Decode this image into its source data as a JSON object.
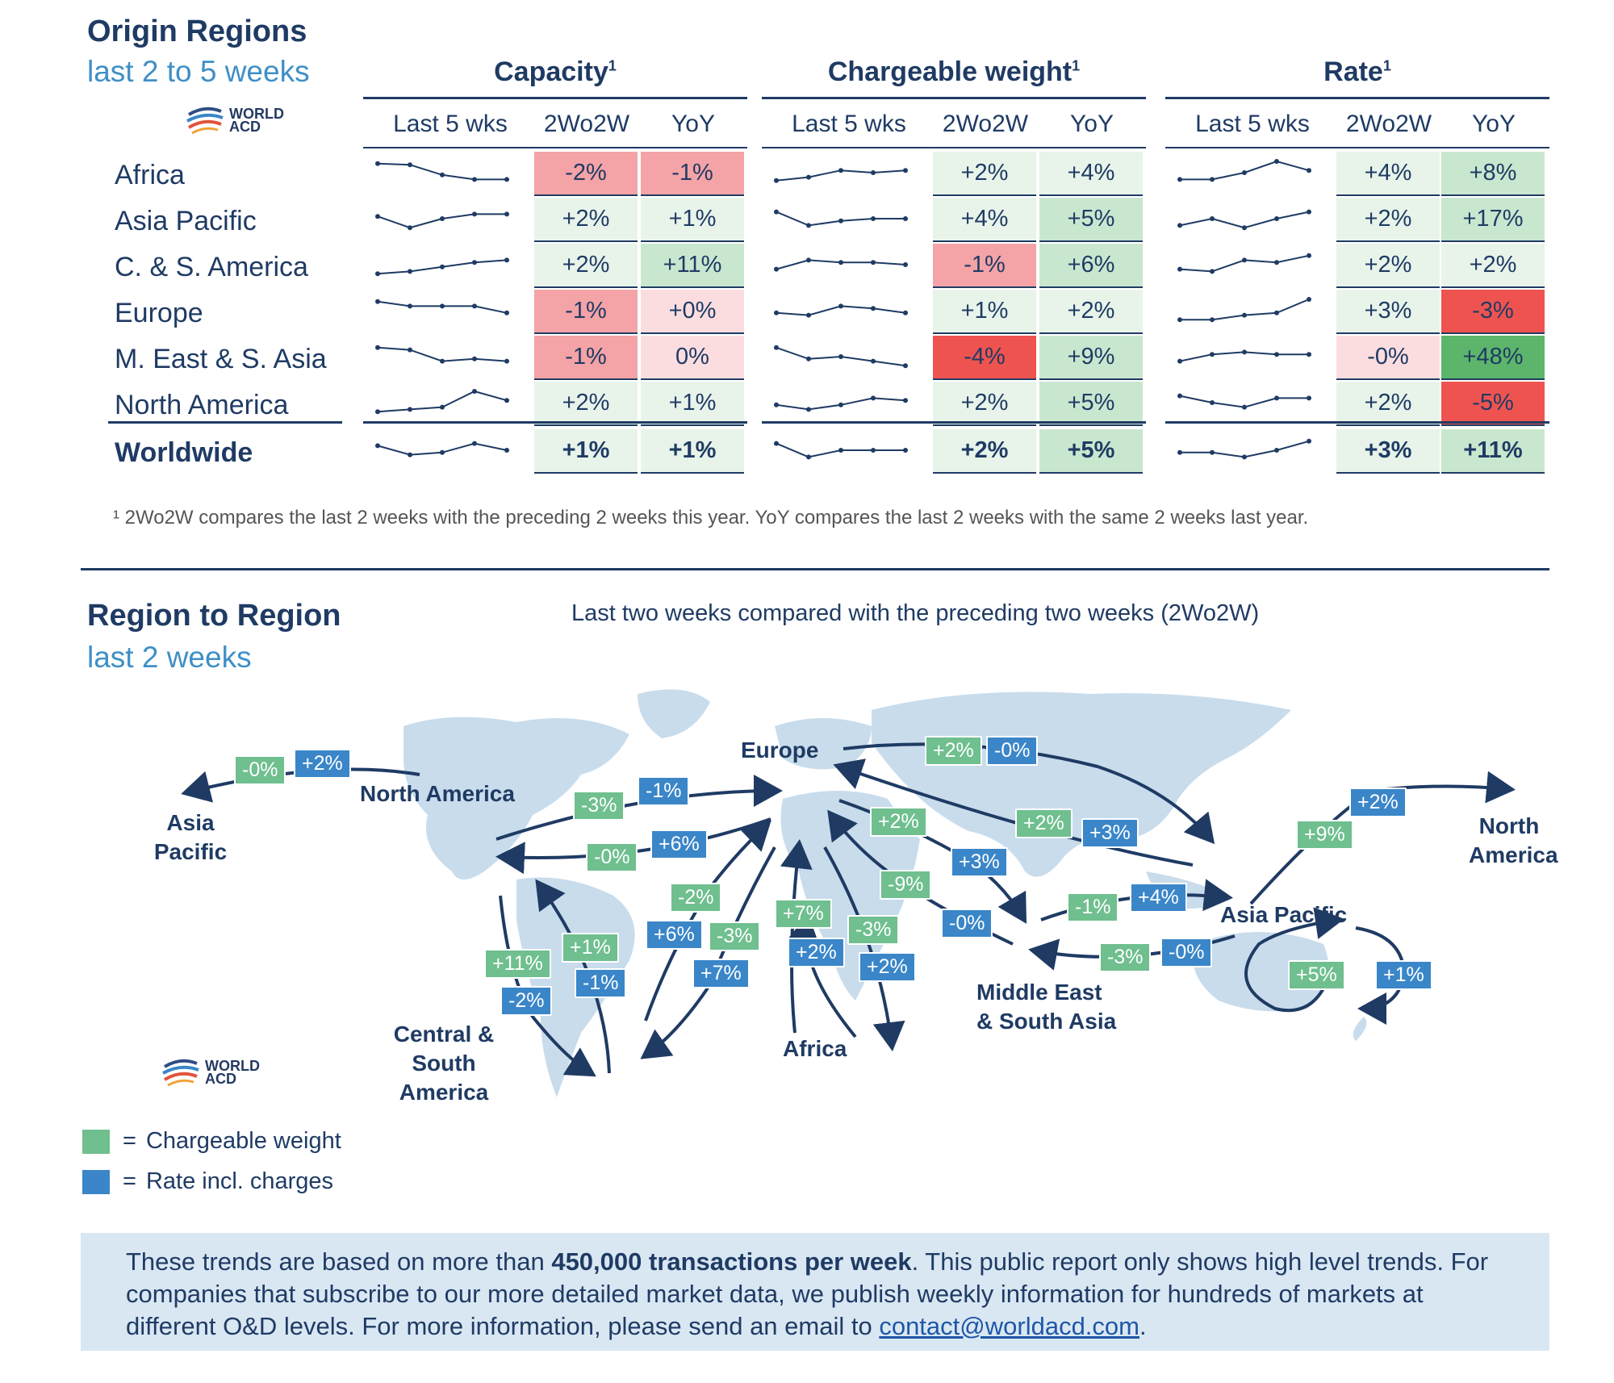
{
  "origin": {
    "title": "Origin Regions",
    "subtitle": "last 2 to 5 weeks",
    "logo": {
      "line1": "WORLD",
      "line2": "ACD"
    },
    "groups": [
      {
        "label": "Capacity",
        "sup": "1"
      },
      {
        "label": "Chargeable weight",
        "sup": "1"
      },
      {
        "label": "Rate",
        "sup": "1"
      }
    ],
    "col_headers": [
      "Last 5 wks",
      "2Wo2W",
      "YoY"
    ],
    "rows": [
      {
        "region": "Africa",
        "bold": false,
        "cap": {
          "spark": [
            0.9,
            0.85,
            0.4,
            0.2,
            0.2
          ],
          "w": "-2%",
          "y": "-1%"
        },
        "cw": {
          "spark": [
            0.15,
            0.3,
            0.6,
            0.5,
            0.6
          ],
          "w": "+2%",
          "y": "+4%"
        },
        "rate": {
          "spark": [
            0.2,
            0.2,
            0.5,
            1.0,
            0.6
          ],
          "w": "+4%",
          "y": "+8%"
        }
      },
      {
        "region": "Asia Pacific",
        "bold": false,
        "cap": {
          "spark": [
            0.6,
            0.1,
            0.5,
            0.7,
            0.7
          ],
          "w": "+2%",
          "y": "+1%"
        },
        "cw": {
          "spark": [
            0.8,
            0.2,
            0.4,
            0.5,
            0.5
          ],
          "w": "+4%",
          "y": "+5%"
        },
        "rate": {
          "spark": [
            0.2,
            0.5,
            0.1,
            0.5,
            0.8
          ],
          "w": "+2%",
          "y": "+17%"
        }
      },
      {
        "region": "C. & S. America",
        "bold": false,
        "cap": {
          "spark": [
            0.1,
            0.2,
            0.4,
            0.6,
            0.7
          ],
          "w": "+2%",
          "y": "+11%"
        },
        "cw": {
          "spark": [
            0.3,
            0.7,
            0.6,
            0.6,
            0.5
          ],
          "w": "-1%",
          "y": "+6%"
        },
        "rate": {
          "spark": [
            0.3,
            0.2,
            0.7,
            0.6,
            0.9
          ],
          "w": "+2%",
          "y": "+2%"
        }
      },
      {
        "region": "Europe",
        "bold": false,
        "cap": {
          "spark": [
            0.9,
            0.7,
            0.7,
            0.7,
            0.4
          ],
          "w": "-1%",
          "y": "+0%"
        },
        "cw": {
          "spark": [
            0.4,
            0.3,
            0.7,
            0.6,
            0.4
          ],
          "w": "+1%",
          "y": "+2%"
        },
        "rate": {
          "spark": [
            0.1,
            0.1,
            0.3,
            0.4,
            1.0
          ],
          "w": "+3%",
          "y": "-3%"
        }
      },
      {
        "region": "M. East & S. Asia",
        "bold": false,
        "cap": {
          "spark": [
            0.9,
            0.8,
            0.3,
            0.4,
            0.3
          ],
          "w": "-1%",
          "y": "0%"
        },
        "cw": {
          "spark": [
            0.9,
            0.4,
            0.5,
            0.3,
            0.1
          ],
          "w": "-4%",
          "y": "+9%"
        },
        "rate": {
          "spark": [
            0.3,
            0.6,
            0.7,
            0.6,
            0.6
          ],
          "w": "-0%",
          "y": "+48%"
        }
      },
      {
        "region": "North America",
        "bold": false,
        "cap": {
          "spark": [
            0.1,
            0.2,
            0.3,
            1.0,
            0.6
          ],
          "w": "+2%",
          "y": "+1%"
        },
        "cw": {
          "spark": [
            0.4,
            0.2,
            0.4,
            0.7,
            0.6
          ],
          "w": "+2%",
          "y": "+5%"
        },
        "rate": {
          "spark": [
            0.8,
            0.5,
            0.3,
            0.7,
            0.7
          ],
          "w": "+2%",
          "y": "-5%"
        }
      },
      {
        "region": "Worldwide",
        "bold": true,
        "cap": {
          "spark": [
            0.7,
            0.3,
            0.4,
            0.8,
            0.5
          ],
          "w": "+1%",
          "y": "+1%"
        },
        "cw": {
          "spark": [
            0.8,
            0.2,
            0.5,
            0.5,
            0.5
          ],
          "w": "+2%",
          "y": "+5%"
        },
        "rate": {
          "spark": [
            0.4,
            0.4,
            0.2,
            0.5,
            0.9
          ],
          "w": "+3%",
          "y": "+11%"
        }
      }
    ],
    "footnote": "¹ 2Wo2W compares the last 2 weeks with the preceding 2 weeks this year. YoY compares the last 2 weeks with the same 2 weeks last year."
  },
  "map": {
    "title": "Region to Region",
    "subtitle": "last 2 weeks",
    "caption": "Last two weeks compared with the preceding two weeks (2Wo2W)",
    "logo": {
      "line1": "WORLD",
      "line2": "ACD"
    },
    "labels": {
      "europe": "Europe",
      "north_america": "North America",
      "asia_pacific_left_1": "Asia",
      "asia_pacific_left_2": "Pacific",
      "north_america_right_1": "North",
      "north_america_right_2": "America",
      "asia_pacific": "Asia Pacific",
      "mesa_1": "Middle East",
      "mesa_2": "& South Asia",
      "africa": "Africa",
      "csa_1": "Central & South",
      "csa_2": "America"
    },
    "tags": {
      "t1": "-0%",
      "t2": "+2%",
      "t3": "-3%",
      "t4": "-1%",
      "t5": "-0%",
      "t6": "+6%",
      "t7": "+2%",
      "t8": "-0%",
      "t9": "+2%",
      "t10": "+3%",
      "t11": "+2%",
      "t12": "+3%",
      "t13": "-9%",
      "t14": "-0%",
      "t15": "-2%",
      "t16": "+6%",
      "t17": "-3%",
      "t18": "+7%",
      "t19": "+7%",
      "t20": "+2%",
      "t21": "-3%",
      "t22": "+2%",
      "t23": "+11%",
      "t24": "-2%",
      "t25": "+1%",
      "t26": "-1%",
      "t27": "-1%",
      "t28": "+4%",
      "t29": "-3%",
      "t30": "-0%",
      "t31": "+2%",
      "t32": "+9%",
      "t33": "+5%",
      "t34": "+1%"
    },
    "legend": [
      {
        "label": "Chargeable weight",
        "color": "#6fbf8f"
      },
      {
        "label": "Rate incl. charges",
        "color": "#3a86c8"
      }
    ]
  },
  "colors": {
    "neg_strong": "#ef5350",
    "neg_mid": "#f4a3a6",
    "neg_light": "#fbdde0",
    "pos_strong": "#5cb56a",
    "pos_mid": "#c9e7cf",
    "pos_light": "#e8f4ea",
    "neutral": "#f4f6f9"
  },
  "footer": {
    "pre": "These trends are based on more than ",
    "bold": "450,000 transactions per week",
    "post": ". This public report only shows high level trends. For companies that subscribe to our more detailed market data, we publish weekly information for hundreds of markets at different O&D levels. For more information, please send an email to ",
    "email": "contact@worldacd.com",
    "end": "."
  }
}
